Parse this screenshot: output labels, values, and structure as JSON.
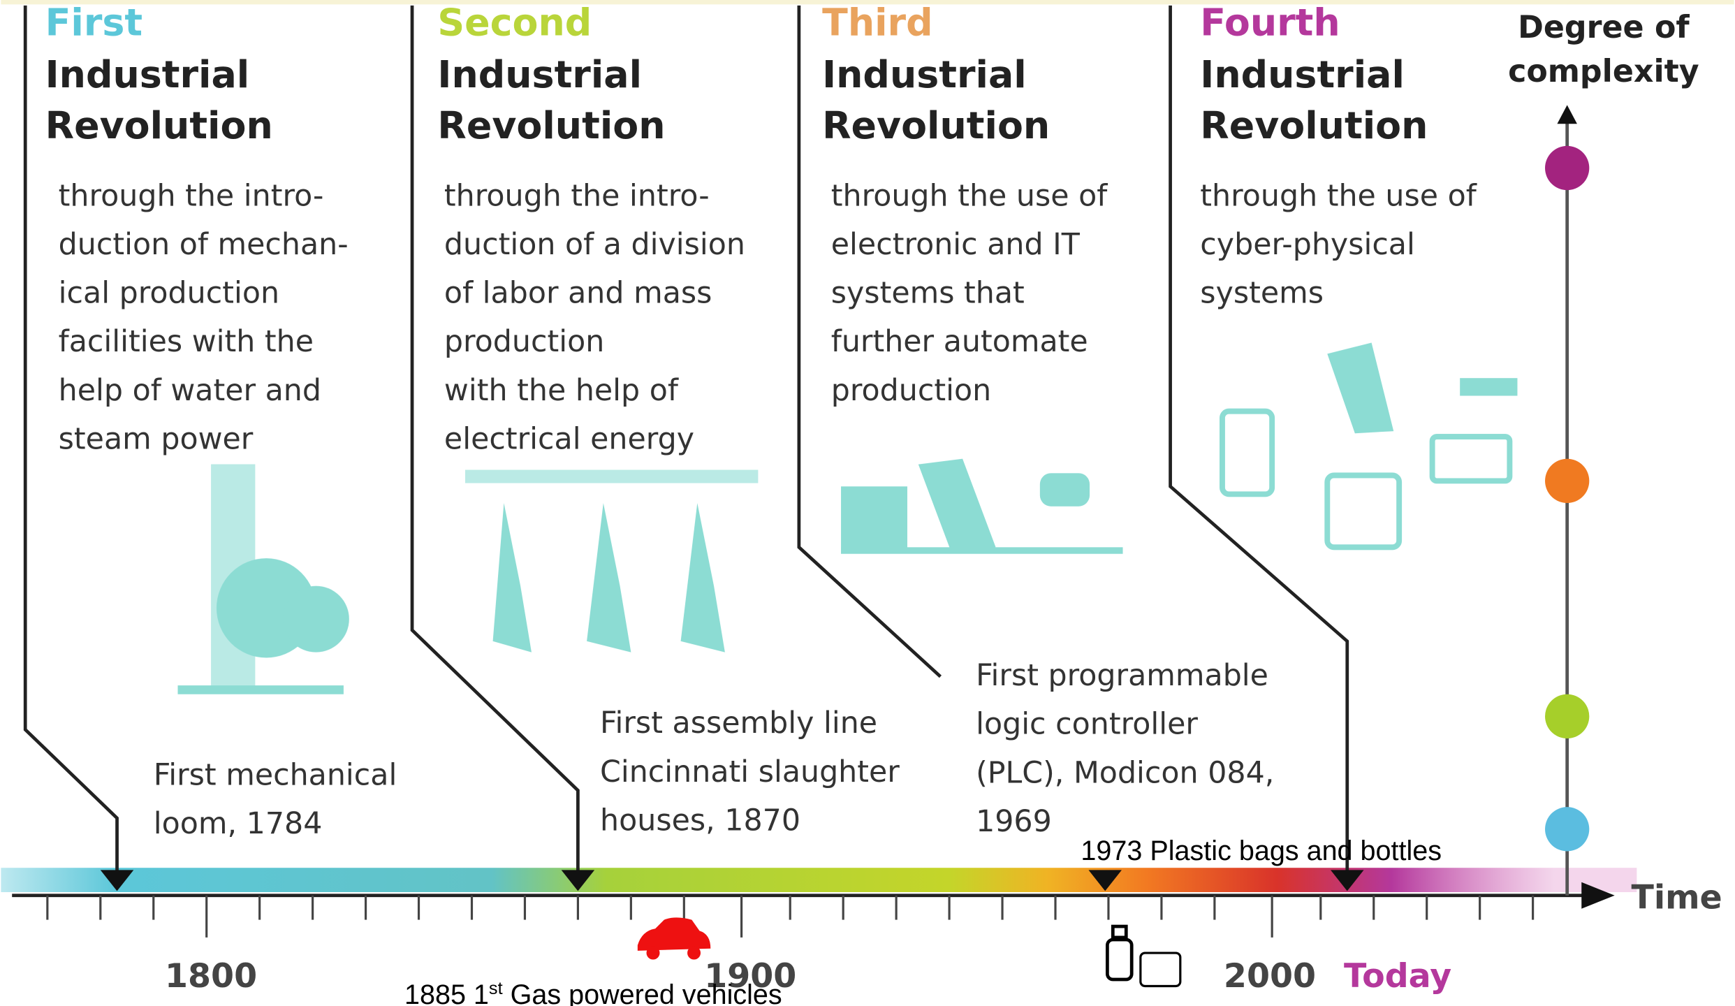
{
  "revolutions": [
    {
      "ordinal": "First",
      "color": "#5cc7d9",
      "title_lines": [
        "Industrial",
        "Revolution"
      ],
      "description_lines": [
        "through the intro-",
        "duction of mechan-",
        "ical production",
        "facilities with the",
        "help of water and",
        "steam power"
      ],
      "event_lines": [
        "First mechanical",
        "loom, 1784"
      ]
    },
    {
      "ordinal": "Second",
      "color": "#b9d53a",
      "title_lines": [
        "Industrial",
        "Revolution"
      ],
      "description_lines": [
        "through the intro-",
        "duction of a division",
        "of labor and mass",
        "production",
        "with the help of",
        "electrical energy"
      ],
      "event_lines": [
        "First assembly line",
        "Cincinnati slaughter",
        "houses, 1870"
      ]
    },
    {
      "ordinal": "Third",
      "color": "#e9a35e",
      "title_lines": [
        "Industrial",
        "Revolution"
      ],
      "description_lines": [
        "through the use of",
        "electronic and IT",
        "systems that",
        "further automate",
        "production"
      ],
      "event_lines": [
        "First programmable",
        "logic controller",
        "(PLC), Modicon 084,",
        "1969"
      ]
    },
    {
      "ordinal": "Fourth",
      "color": "#b4389c",
      "title_lines": [
        "Industrial",
        "Revolution"
      ],
      "description_lines": [
        "through the use of",
        "cyber-physical",
        "systems"
      ],
      "event_lines": []
    }
  ],
  "axis": {
    "y_label_lines": [
      "Degree of",
      "complexity"
    ],
    "x_label": "Time",
    "ticks": [
      "1800",
      "1900",
      "2000",
      "Today"
    ]
  },
  "annotations": {
    "plastic": "1973 Plastic bags and bottles",
    "vehicles": [
      "1885 1",
      "st",
      " Gas powered vehicles"
    ]
  }
}
